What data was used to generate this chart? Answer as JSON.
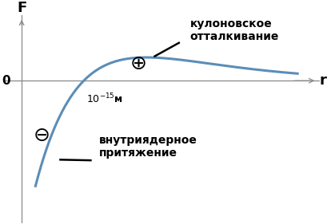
{
  "background_color": "#ffffff",
  "curve_color": "#5b8db8",
  "curve_linewidth": 2.2,
  "xlabel": "r",
  "ylabel": "F",
  "zero_label": "0",
  "distance_label": "$10^{-15}$м",
  "annotation_repulsion": "кулоновское\nотталкивание",
  "annotation_attraction": "внутриядерное\nпритяжение",
  "axis_color": "#888888",
  "text_color": "#000000",
  "font_size_labels": 13,
  "font_size_anno": 10,
  "font_size_tick": 11,
  "font_size_symbol": 18
}
